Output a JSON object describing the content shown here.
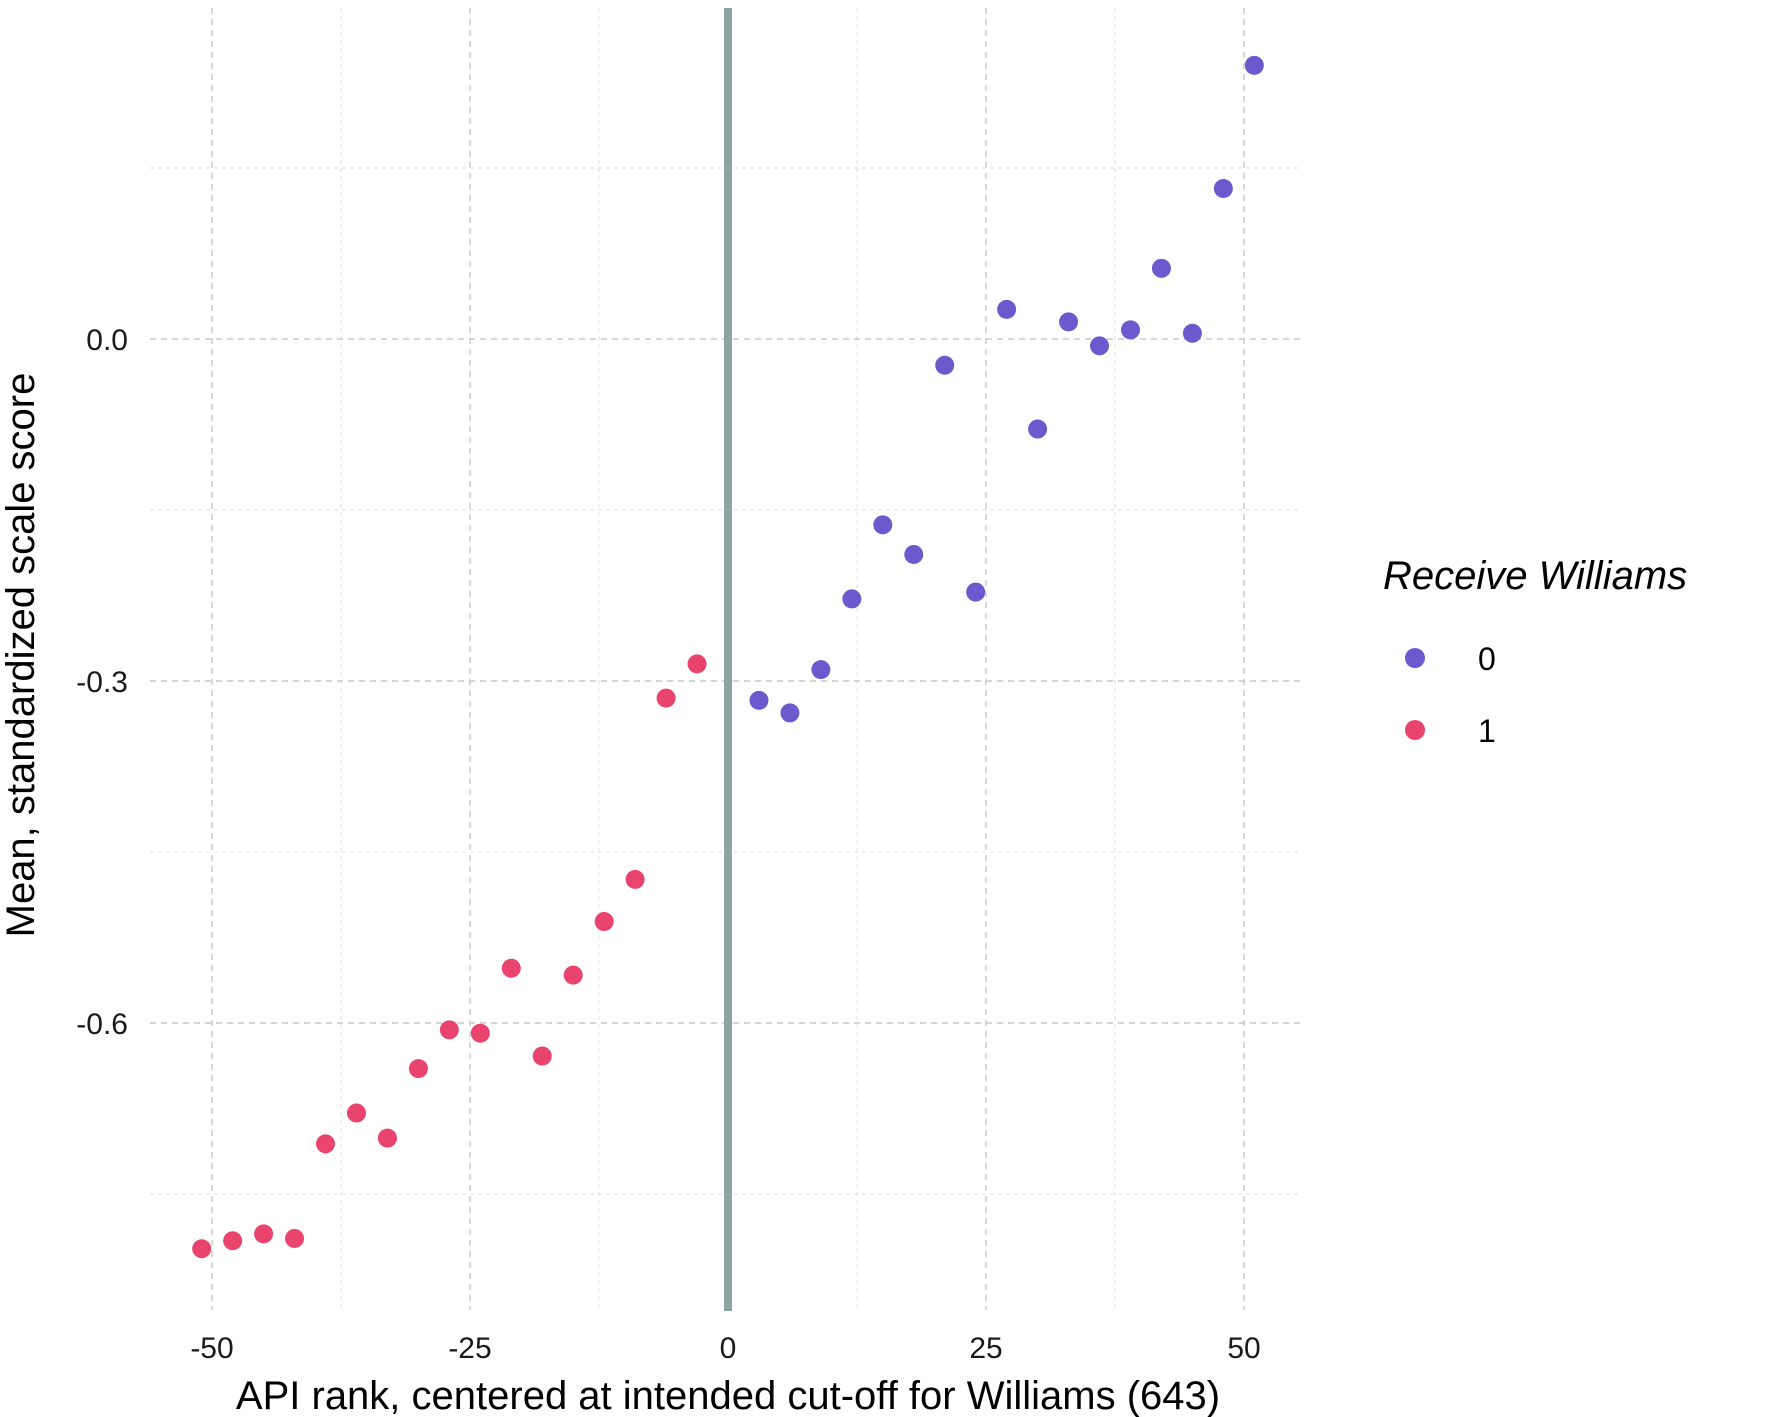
{
  "chart_data": {
    "type": "scatter",
    "title": "",
    "xlabel": "API rank, centered at intended cut-off for Williams (643)",
    "ylabel": "Mean, standardized scale score",
    "xlim": [
      -55,
      56
    ],
    "ylim": [
      -0.855,
      0.295
    ],
    "x_ticks": [
      -50,
      -25,
      0,
      25,
      50
    ],
    "x_tick_labels": [
      "-50",
      "-25",
      "0",
      "25",
      "50"
    ],
    "y_ticks": [
      -0.6,
      -0.3,
      0.0
    ],
    "y_tick_labels": [
      "-0.6",
      "-0.3",
      "0.0"
    ],
    "y_minor_ticks": [
      -0.75,
      -0.45,
      -0.15,
      0.15
    ],
    "grid": true,
    "cutoff_line_x": 0,
    "legend": {
      "title": "Receive Williams",
      "position": "right",
      "entries": [
        {
          "label": "0",
          "color": "#6a5acd"
        },
        {
          "label": "1",
          "color": "#e8446d"
        }
      ]
    },
    "series": [
      {
        "name": "0",
        "color": "#6a5acd",
        "points": [
          {
            "x": 3,
            "y": -0.317
          },
          {
            "x": 6,
            "y": -0.328
          },
          {
            "x": 9,
            "y": -0.29
          },
          {
            "x": 12,
            "y": -0.228
          },
          {
            "x": 15,
            "y": -0.163
          },
          {
            "x": 18,
            "y": -0.189
          },
          {
            "x": 21,
            "y": -0.023
          },
          {
            "x": 24,
            "y": -0.222
          },
          {
            "x": 27,
            "y": 0.026
          },
          {
            "x": 30,
            "y": -0.079
          },
          {
            "x": 33,
            "y": 0.015
          },
          {
            "x": 36,
            "y": -0.006
          },
          {
            "x": 39,
            "y": 0.008
          },
          {
            "x": 42,
            "y": 0.062
          },
          {
            "x": 45,
            "y": 0.005
          },
          {
            "x": 48,
            "y": 0.132
          },
          {
            "x": 51,
            "y": 0.24
          }
        ]
      },
      {
        "name": "1",
        "color": "#e8446d",
        "points": [
          {
            "x": -51,
            "y": -0.798
          },
          {
            "x": -48,
            "y": -0.791
          },
          {
            "x": -45,
            "y": -0.785
          },
          {
            "x": -42,
            "y": -0.789
          },
          {
            "x": -39,
            "y": -0.706
          },
          {
            "x": -36,
            "y": -0.679
          },
          {
            "x": -33,
            "y": -0.701
          },
          {
            "x": -30,
            "y": -0.64
          },
          {
            "x": -27,
            "y": -0.606
          },
          {
            "x": -24,
            "y": -0.609
          },
          {
            "x": -21,
            "y": -0.552
          },
          {
            "x": -18,
            "y": -0.629
          },
          {
            "x": -15,
            "y": -0.558
          },
          {
            "x": -12,
            "y": -0.511
          },
          {
            "x": -9,
            "y": -0.474
          },
          {
            "x": -6,
            "y": -0.315
          },
          {
            "x": -3,
            "y": -0.285
          }
        ]
      }
    ]
  }
}
